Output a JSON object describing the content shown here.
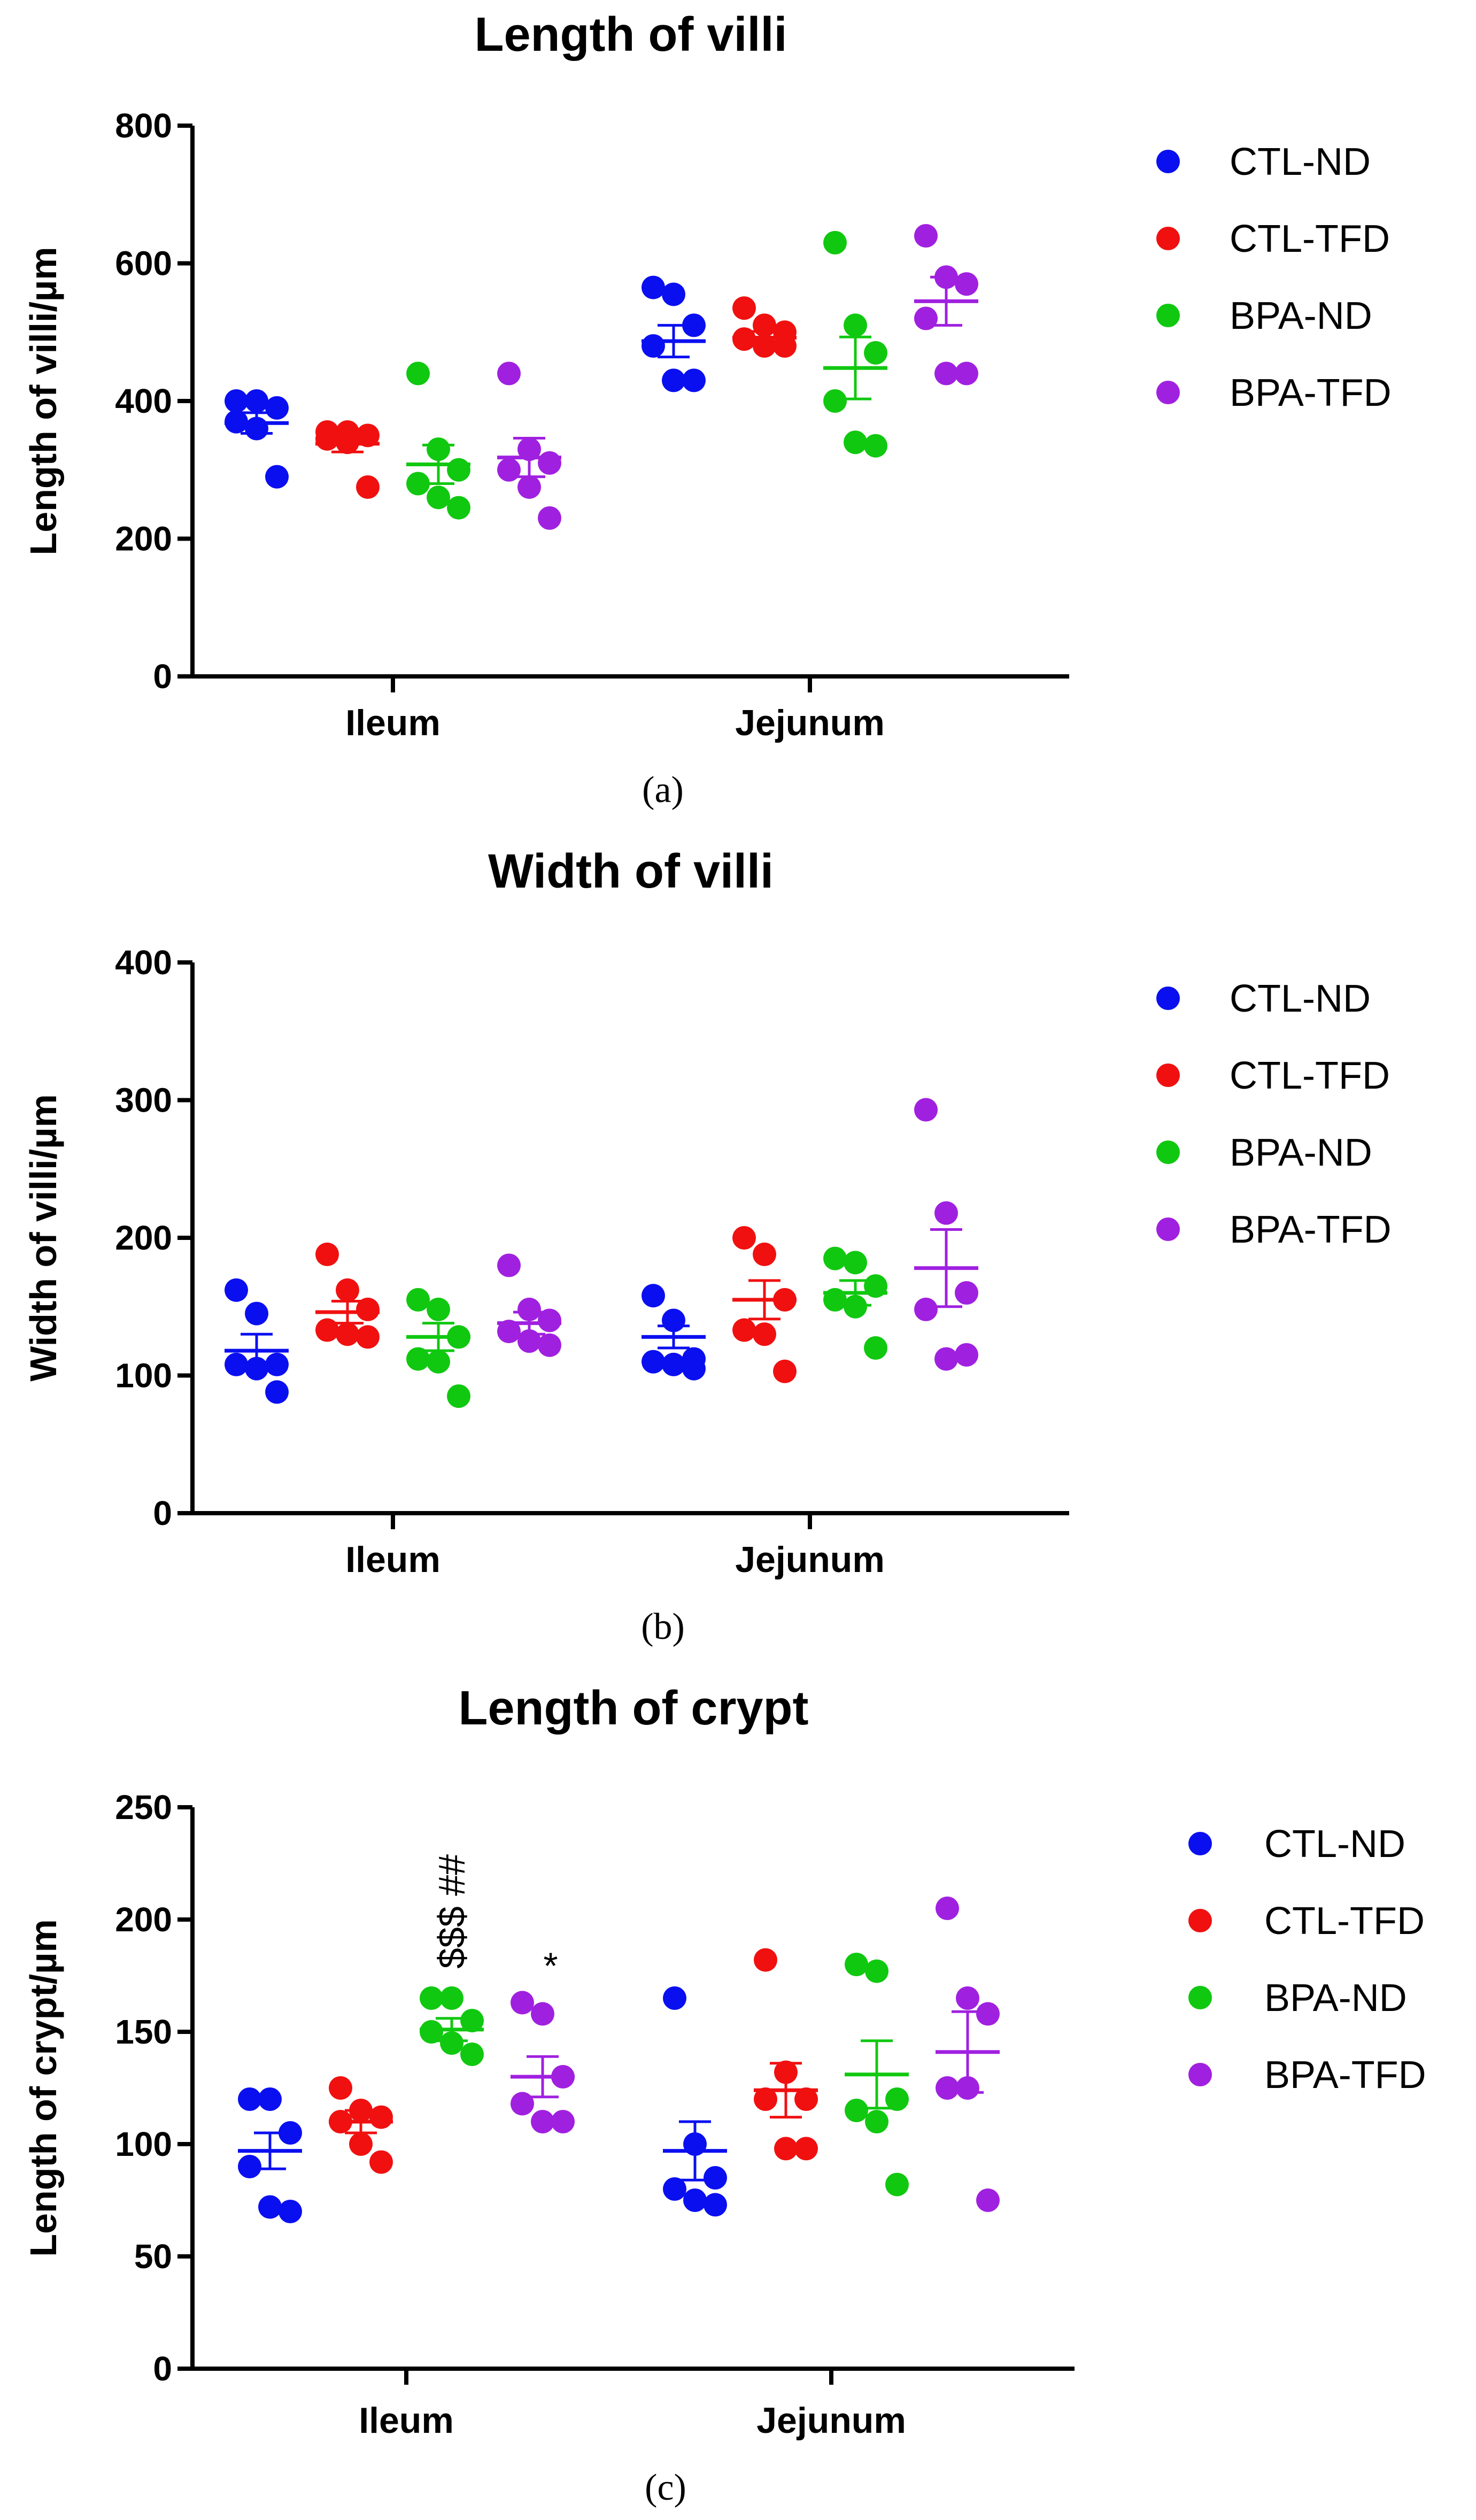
{
  "chart_data": [
    {
      "type": "scatter",
      "title": "Length of villi",
      "ylabel": "Length of villi/µm",
      "ylim": [
        0,
        800
      ],
      "yticks": [
        0,
        200,
        400,
        600,
        800
      ],
      "categories": [
        "Ileum",
        "Jejunum"
      ],
      "caption": "(a)",
      "series": [
        {
          "name": "CTL-ND",
          "color": "#0a0ff0",
          "points": [
            [
              400,
              400,
              390,
              370,
              360,
              290
            ],
            [
              565,
              555,
              510,
              480,
              430,
              430
            ]
          ],
          "mean": [
            368,
            487
          ],
          "sem": [
            15,
            23
          ]
        },
        {
          "name": "CTL-TFD",
          "color": "#f01010",
          "points": [
            [
              355,
              355,
              350,
              345,
              340,
              275
            ],
            [
              535,
              510,
              500,
              490,
              480,
              480
            ]
          ],
          "mean": [
            338,
            492
          ],
          "sem": [
            12,
            9
          ]
        },
        {
          "name": "BPA-ND",
          "color": "#10c810",
          "points": [
            [
              440,
              330,
              300,
              280,
              260,
              245
            ],
            [
              630,
              510,
              470,
              400,
              340,
              335
            ]
          ],
          "mean": [
            308,
            448
          ],
          "sem": [
            28,
            45
          ]
        },
        {
          "name": "BPA-TFD",
          "color": "#a020e0",
          "points": [
            [
              440,
              330,
              310,
              300,
              275,
              230
            ],
            [
              640,
              580,
              570,
              520,
              440,
              440
            ]
          ],
          "mean": [
            318,
            545
          ],
          "sem": [
            28,
            35
          ]
        }
      ]
    },
    {
      "type": "scatter",
      "title": "Width of villi",
      "ylabel": "Width of villi/µm",
      "ylim": [
        0,
        400
      ],
      "yticks": [
        0,
        100,
        200,
        300,
        400
      ],
      "categories": [
        "Ileum",
        "Jejunum"
      ],
      "caption": "(b)",
      "series": [
        {
          "name": "CTL-ND",
          "color": "#0a0ff0",
          "points": [
            [
              162,
              145,
              108,
              108,
              105,
              88
            ],
            [
              158,
              140,
              112,
              110,
              108,
              105
            ]
          ],
          "mean": [
            118,
            128
          ],
          "sem": [
            12,
            8
          ]
        },
        {
          "name": "CTL-TFD",
          "color": "#f01010",
          "points": [
            [
              188,
              162,
              148,
              133,
              130,
              128
            ],
            [
              200,
              188,
              155,
              133,
              130,
              103
            ]
          ],
          "mean": [
            146,
            155
          ],
          "sem": [
            8,
            14
          ]
        },
        {
          "name": "BPA-ND",
          "color": "#10c810",
          "points": [
            [
              155,
              148,
              128,
              112,
              110,
              85
            ],
            [
              185,
              182,
              165,
              155,
              150,
              120
            ]
          ],
          "mean": [
            128,
            160
          ],
          "sem": [
            10,
            9
          ]
        },
        {
          "name": "BPA-TFD",
          "color": "#a020e0",
          "points": [
            [
              180,
              148,
              140,
              132,
              125,
              122
            ],
            [
              293,
              218,
              160,
              148,
              112,
              115
            ]
          ],
          "mean": [
            138,
            178
          ],
          "sem": [
            8,
            28
          ]
        }
      ]
    },
    {
      "type": "scatter",
      "title": "Length of crypt",
      "ylabel": "Length of crypt/µm",
      "ylim": [
        0,
        250
      ],
      "yticks": [
        0,
        50,
        100,
        150,
        200,
        250
      ],
      "categories": [
        "Ileum",
        "Jejunum"
      ],
      "caption": "(c)",
      "annotations": [
        {
          "text": "$$$ ##",
          "series": "BPA-ND",
          "category": "Ileum",
          "rotate": true
        },
        {
          "text": "*",
          "series": "BPA-TFD",
          "category": "Ileum",
          "rotate": false
        }
      ],
      "series": [
        {
          "name": "CTL-ND",
          "color": "#0a0ff0",
          "points": [
            [
              120,
              120,
              105,
              90,
              72,
              70
            ],
            [
              165,
              100,
              85,
              80,
              75,
              73
            ]
          ],
          "mean": [
            97,
            97
          ],
          "sem": [
            8,
            13
          ]
        },
        {
          "name": "CTL-TFD",
          "color": "#f01010",
          "points": [
            [
              125,
              115,
              112,
              110,
              100,
              92
            ],
            [
              182,
              132,
              120,
              120,
              98,
              98
            ]
          ],
          "mean": [
            110,
            124
          ],
          "sem": [
            5,
            12
          ]
        },
        {
          "name": "BPA-ND",
          "color": "#10c810",
          "points": [
            [
              165,
              165,
              155,
              150,
              145,
              140
            ],
            [
              180,
              177,
              120,
              115,
              110,
              82
            ]
          ],
          "mean": [
            151,
            131
          ],
          "sem": [
            5,
            15
          ]
        },
        {
          "name": "BPA-TFD",
          "color": "#a020e0",
          "points": [
            [
              163,
              158,
              130,
              118,
              110,
              110
            ],
            [
              205,
              165,
              158,
              125,
              125,
              75
            ]
          ],
          "mean": [
            130,
            141
          ],
          "sem": [
            9,
            18
          ]
        }
      ]
    }
  ]
}
